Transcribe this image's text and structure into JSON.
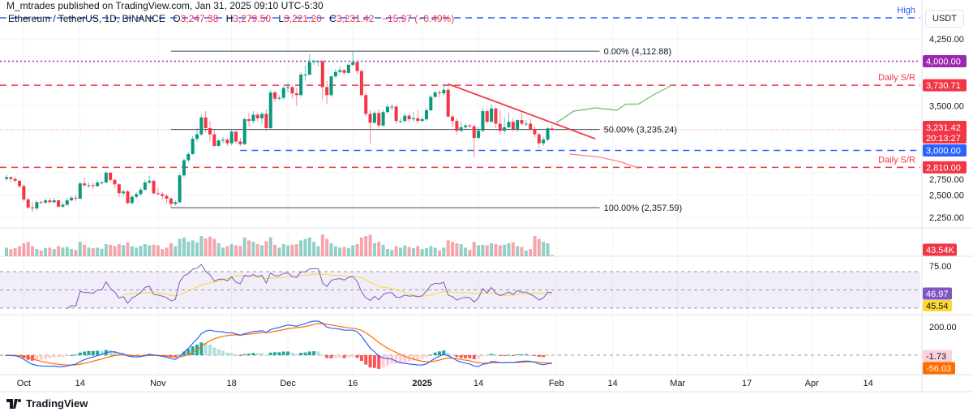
{
  "header": {
    "publisher": "M_mtrades published on TradingView.com, Jan 31, 2025 09:10 UTC-5:30",
    "symbol": "Ethereum / TetherUS, 1D, BINANCE",
    "o_label": "O",
    "o": "3,247.38",
    "h_label": "H",
    "h": "3,279.50",
    "l_label": "L",
    "l": "3,221.20",
    "c_label": "C",
    "c": "3,231.42",
    "change": "−15.97 (−0.49%)"
  },
  "price_axis": {
    "currency": "USDT",
    "ticks": [
      {
        "price": 4250,
        "label": "4,250.00"
      },
      {
        "price": 3500,
        "label": "3,500.00"
      },
      {
        "price": 2750,
        "label": "2,750.00"
      },
      {
        "price": 2500,
        "label": "2,500.00"
      },
      {
        "price": 2250,
        "label": "2,250.00"
      }
    ]
  },
  "logo": {
    "text": "TradingView"
  },
  "colors": {
    "up": "#089981",
    "down": "#f23645",
    "vol_up": "rgba(8,153,129,0.45)",
    "vol_down": "rgba(242,54,69,0.45)",
    "rsi": "#7e57c2",
    "rsi_ma": "#fdd835",
    "macd": "#2962ff",
    "signal": "#ff6d00",
    "hist_up_strong": "#26a69a",
    "hist_up_weak": "#b2dfdb",
    "hist_down_strong": "#ff5252",
    "hist_down_weak": "#ffcdd2",
    "resistance": "#f23645",
    "support_blue": "#2962ff",
    "level_purple": "#9c27b0",
    "fib": "#434651",
    "bull_path": "#66bb6a",
    "bear_path": "#f77c80"
  },
  "chart_data": {
    "type": "candlestick",
    "symbol": "ETHUSDT",
    "interval": "1D",
    "first_date": "2024-09-27",
    "first_open": 2680,
    "close": [
      2700,
      2680,
      2660,
      2600,
      2450,
      2360,
      2350,
      2420,
      2415,
      2440,
      2420,
      2440,
      2370,
      2390,
      2440,
      2470,
      2460,
      2630,
      2610,
      2610,
      2600,
      2640,
      2640,
      2750,
      2670,
      2620,
      2520,
      2540,
      2410,
      2480,
      2510,
      2560,
      2640,
      2660,
      2520,
      2510,
      2490,
      2460,
      2400,
      2420,
      2720,
      2890,
      2960,
      3130,
      3180,
      3370,
      3250,
      3180,
      3050,
      3110,
      3120,
      3080,
      3210,
      3100,
      3070,
      3350,
      3330,
      3400,
      3360,
      3410,
      3250,
      3650,
      3580,
      3590,
      3700,
      3710,
      3640,
      3620,
      3850,
      3850,
      3990,
      4000,
      4000,
      3710,
      3620,
      3830,
      3880,
      3900,
      3870,
      3960,
      3990,
      3890,
      3620,
      3410,
      3310,
      3420,
      3280,
      3430,
      3490,
      3490,
      3330,
      3330,
      3390,
      3350,
      3360,
      3330,
      3350,
      3450,
      3600,
      3650,
      3640,
      3680,
      3380,
      3330,
      3220,
      3260,
      3280,
      3270,
      3140,
      3220,
      3440,
      3320,
      3470,
      3300,
      3220,
      3260,
      3320,
      3240,
      3340,
      3300,
      3300,
      3240,
      3180,
      3080,
      3120,
      3247.38,
      3231.42
    ],
    "high": [
      2730,
      2710,
      2700,
      2670,
      2620,
      2470,
      2420,
      2440,
      2440,
      2460,
      2470,
      2470,
      2450,
      2420,
      2460,
      2490,
      2500,
      2650,
      2690,
      2640,
      2640,
      2670,
      2660,
      2770,
      2760,
      2680,
      2630,
      2560,
      2560,
      2500,
      2530,
      2580,
      2670,
      2720,
      2670,
      2580,
      2530,
      2510,
      2480,
      2440,
      2740,
      2910,
      2980,
      3160,
      3250,
      3400,
      3440,
      3330,
      3230,
      3130,
      3150,
      3140,
      3230,
      3220,
      3140,
      3370,
      3420,
      3440,
      3420,
      3430,
      3460,
      3680,
      3670,
      3620,
      3720,
      3760,
      3730,
      3700,
      3880,
      3950,
      4080,
      4020,
      4010,
      4010,
      3780,
      3840,
      3910,
      3940,
      3910,
      3980,
      4112.88,
      4010,
      3910,
      3650,
      3450,
      3440,
      3460,
      3450,
      3520,
      3520,
      3510,
      3370,
      3420,
      3410,
      3430,
      3450,
      3370,
      3480,
      3620,
      3670,
      3680,
      3745,
      3700,
      3400,
      3360,
      3320,
      3300,
      3300,
      3290,
      3260,
      3480,
      3460,
      3520,
      3480,
      3450,
      3370,
      3430,
      3360,
      3350,
      3420,
      3340,
      3350,
      3270,
      3200,
      3150,
      3260,
      3279.5
    ],
    "low": [
      2660,
      2650,
      2640,
      2580,
      2430,
      2340,
      2310,
      2330,
      2400,
      2400,
      2410,
      2400,
      2360,
      2350,
      2380,
      2430,
      2430,
      2450,
      2590,
      2580,
      2570,
      2590,
      2620,
      2630,
      2640,
      2580,
      2480,
      2490,
      2390,
      2400,
      2460,
      2490,
      2550,
      2620,
      2500,
      2500,
      2450,
      2410,
      2357.59,
      2380,
      2410,
      2700,
      2870,
      2950,
      3100,
      3160,
      3200,
      3100,
      3040,
      3040,
      3080,
      3050,
      3060,
      3080,
      3050,
      3060,
      3270,
      3300,
      3320,
      3300,
      3220,
      3240,
      3540,
      3560,
      3570,
      3650,
      3580,
      3500,
      3600,
      3780,
      3840,
      3960,
      3940,
      3570,
      3520,
      3600,
      3810,
      3860,
      3850,
      3850,
      3940,
      3850,
      3600,
      3380,
      3080,
      3300,
      3250,
      3260,
      3410,
      3450,
      3300,
      3300,
      3310,
      3320,
      3320,
      3300,
      3320,
      3330,
      3440,
      3590,
      3590,
      3620,
      3360,
      3260,
      3180,
      3200,
      3230,
      3250,
      2920,
      3130,
      3210,
      3310,
      3320,
      3250,
      3180,
      3190,
      3250,
      3210,
      3210,
      3280,
      3270,
      3220,
      3150,
      3020,
      3050,
      3100,
      3221.2
    ],
    "volume_k": [
      300,
      250,
      280,
      350,
      450,
      500,
      350,
      250,
      200,
      280,
      300,
      250,
      350,
      300,
      320,
      250,
      220,
      500,
      400,
      300,
      280,
      300,
      260,
      420,
      400,
      350,
      420,
      380,
      480,
      350,
      300,
      360,
      420,
      380,
      400,
      380,
      250,
      300,
      450,
      350,
      600,
      650,
      500,
      550,
      480,
      700,
      620,
      680,
      600,
      450,
      300,
      350,
      420,
      380,
      360,
      650,
      550,
      500,
      420,
      380,
      520,
      650,
      400,
      300,
      420,
      380,
      400,
      420,
      550,
      600,
      650,
      500,
      350,
      750,
      600,
      450,
      350,
      300,
      320,
      280,
      380,
      420,
      650,
      700,
      750,
      450,
      500,
      400,
      250,
      220,
      350,
      300,
      380,
      320,
      280,
      350,
      250,
      280,
      350,
      300,
      200,
      300,
      550,
      500,
      450,
      420,
      300,
      220,
      500,
      380,
      400,
      380,
      450,
      420,
      380,
      400,
      450,
      480,
      350,
      320,
      200,
      250,
      700,
      600,
      500,
      450,
      43.54
    ],
    "price_range": [
      2170,
      4500
    ],
    "x_ticks": [
      {
        "label": "Oct",
        "date": "2024-10-01"
      },
      {
        "label": "14",
        "date": "2024-10-14"
      },
      {
        "label": "Nov",
        "date": "2024-11-01"
      },
      {
        "label": "18",
        "date": "2024-11-18"
      },
      {
        "label": "Dec",
        "date": "2024-12-01"
      },
      {
        "label": "16",
        "date": "2024-12-16"
      },
      {
        "label": "2025",
        "date": "2025-01-01",
        "bold": true
      },
      {
        "label": "14",
        "date": "2025-01-14"
      },
      {
        "label": "Feb",
        "date": "2025-02-01"
      },
      {
        "label": "14",
        "date": "2025-02-14"
      },
      {
        "label": "Mar",
        "date": "2025-03-01"
      },
      {
        "label": "17",
        "date": "2025-03-17"
      },
      {
        "label": "Apr",
        "date": "2025-04-01"
      },
      {
        "label": "14",
        "date": "2025-04-14"
      }
    ],
    "levels": [
      {
        "name": "high",
        "price": 4486,
        "style": "dashed",
        "color": "#2962ff",
        "text": "High"
      },
      {
        "name": "4000",
        "price": 4000,
        "style": "dotted",
        "color": "#9c27b0",
        "axis_label": "4,000.00"
      },
      {
        "name": "daily-sr-upper",
        "price": 3730.71,
        "style": "dashed",
        "color": "#f23645",
        "text": "Daily S/R",
        "axis_label": "3,730.71"
      },
      {
        "name": "support-3000",
        "price": 3000,
        "style": "dashed",
        "color": "#2962ff",
        "from": "2024-11-20",
        "axis_label": "3,000.00"
      },
      {
        "name": "daily-sr-lower",
        "price": 2810,
        "style": "dashed",
        "color": "#f23645",
        "text": "Daily S/R",
        "axis_label": "2,810.00"
      }
    ],
    "last_price": {
      "price": 3231.42,
      "label": "3,231.42",
      "countdown": "20:13:27"
    },
    "fibonacci": {
      "from": "2024-11-04",
      "to": "2025-02-11",
      "levels": [
        {
          "price": 4112.88,
          "label": "0.00% (4,112.88)"
        },
        {
          "price": 3235.24,
          "label": "50.00% (3,235.24)"
        },
        {
          "price": 2357.59,
          "label": "100.00% (2,357.59)"
        }
      ]
    },
    "trendline": [
      {
        "date": "2025-01-07",
        "price": 3745
      },
      {
        "date": "2025-02-10",
        "price": 3130
      }
    ],
    "bull_projection": [
      [
        "2025-02-01",
        3310
      ],
      [
        "2025-02-05",
        3440
      ],
      [
        "2025-02-10",
        3477
      ],
      [
        "2025-02-15",
        3450
      ],
      [
        "2025-02-17",
        3520
      ],
      [
        "2025-02-20",
        3520
      ],
      [
        "2025-02-23",
        3610
      ],
      [
        "2025-02-28",
        3740
      ]
    ],
    "bear_projection": [
      [
        "2025-02-04",
        2960
      ],
      [
        "2025-02-11",
        2925
      ],
      [
        "2025-02-16",
        2870
      ],
      [
        "2025-02-20",
        2800
      ]
    ],
    "volume": {
      "label": "43.54K"
    },
    "rsi": {
      "period": 14,
      "ma_period": 14,
      "value_label": "46.97",
      "ma_label": "45.54",
      "tick_label": "75.00",
      "bands": [
        70,
        50,
        30
      ]
    },
    "macd": {
      "fast": 12,
      "slow": 26,
      "signal": 9,
      "tick_label": "200.00",
      "hist_label": "-1.73",
      "signal_label": "-56.03"
    }
  }
}
